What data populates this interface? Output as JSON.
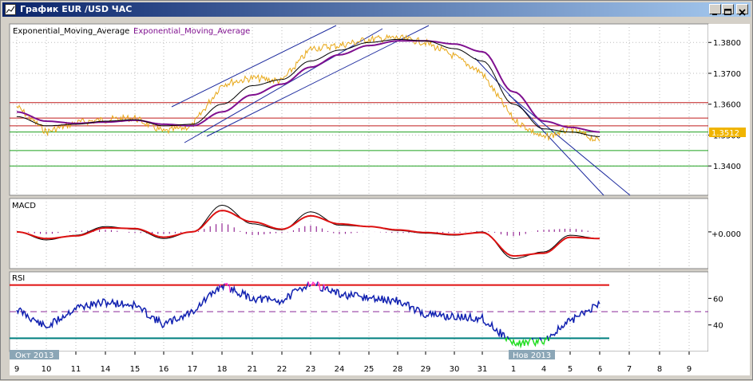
{
  "window": {
    "title": "График EUR /USD  ЧАС"
  },
  "price_panel": {
    "indicator_label_1": "Exponential_Moving_Average",
    "indicator_label_2": "Exponential_Moving_Average",
    "current_price": "1.3512",
    "y_ticks": [
      "1.3800",
      "1.3700",
      "1.3600",
      "1.3500",
      "1.3400"
    ]
  },
  "macd_panel": {
    "label": "MACD",
    "zero_label": "+0.000"
  },
  "rsi_panel": {
    "label": "RSI",
    "y_ticks": [
      "60",
      "40"
    ]
  },
  "x_axis": {
    "ticks": [
      "9",
      "10",
      "11",
      "14",
      "15",
      "16",
      "17",
      "18",
      "21",
      "22",
      "23",
      "24",
      "25",
      "28",
      "29",
      "30",
      "31",
      "1",
      "4",
      "5",
      "6",
      "7",
      "8",
      "9"
    ],
    "month_labels": [
      "Окт 2013",
      "Нов 2013"
    ]
  },
  "colors": {
    "price": "#e8a817",
    "ema_fast": "#000000",
    "ema_slow": "#7f0f8f",
    "channel": "#1c2a9e",
    "resistance": "#c01c1c",
    "support": "#1ea01e",
    "macd_signal": "#dd1111",
    "macd_hist": "#800080",
    "rsi": "#1020b0",
    "rsi_overbought": "#ff33cc",
    "rsi_oversold": "#22dd22",
    "price_label_bg": "#f0b400",
    "rsi_upper_line": "#e01010",
    "rsi_lower_line": "#008080",
    "rsi_mid_line": "#8b2a9a"
  },
  "chart_data": [
    {
      "type": "line",
      "panel": "price",
      "x": [
        "9",
        "10",
        "11",
        "14",
        "15",
        "16",
        "17",
        "18",
        "21",
        "22",
        "23",
        "24",
        "25",
        "28",
        "29",
        "30",
        "31",
        "1",
        "4",
        "5",
        "6"
      ],
      "series": [
        {
          "name": "",
          "values": [
            1.3593,
            1.351,
            1.354,
            1.355,
            1.3555,
            1.351,
            1.353,
            1.3665,
            1.3685,
            1.3675,
            1.378,
            1.379,
            1.381,
            1.3815,
            1.38,
            1.3755,
            1.37,
            1.355,
            1.349,
            1.352,
            1.348
          ]
        },
        {
          "name": "Exponential_Moving_Average",
          "values": [
            1.356,
            1.353,
            1.3535,
            1.3545,
            1.355,
            1.353,
            1.3535,
            1.36,
            1.366,
            1.368,
            1.374,
            1.3775,
            1.38,
            1.381,
            1.3805,
            1.378,
            1.374,
            1.36,
            1.352,
            1.351,
            1.3495
          ]
        },
        {
          "name": "Exponential_Moving_Average",
          "values": [
            1.3575,
            1.3545,
            1.3538,
            1.3542,
            1.3548,
            1.3535,
            1.353,
            1.3575,
            1.363,
            1.3665,
            1.372,
            1.376,
            1.379,
            1.3805,
            1.3805,
            1.3795,
            1.377,
            1.364,
            1.3545,
            1.3525,
            1.351
          ]
        }
      ],
      "horizontal_levels": {
        "resistance": [
          1.3605,
          1.3555,
          1.353
        ],
        "support": [
          1.351,
          1.345,
          1.34
        ]
      },
      "last_value": 1.3512,
      "ylim": [
        1.3305,
        1.386
      ]
    },
    {
      "type": "line",
      "panel": "macd",
      "x": [
        "9",
        "10",
        "11",
        "14",
        "15",
        "16",
        "17",
        "18",
        "21",
        "22",
        "23",
        "24",
        "25",
        "28",
        "29",
        "30",
        "31",
        "1",
        "4",
        "5",
        "6"
      ],
      "series": [
        {
          "name": "",
          "values": [
            0.0,
            -0.0012,
            -0.0005,
            0.0008,
            0.0004,
            -0.001,
            0.0,
            0.004,
            0.0012,
            0.0003,
            0.003,
            0.001,
            0.0008,
            0.0002,
            -0.0002,
            -0.0005,
            0.0,
            -0.004,
            -0.003,
            -0.0005,
            -0.001
          ]
        },
        {
          "name": "",
          "values": [
            0.0,
            -0.001,
            -0.0006,
            0.0006,
            0.0005,
            -0.0008,
            0.0,
            0.0032,
            0.0015,
            0.0004,
            0.0024,
            0.0012,
            0.0008,
            0.0003,
            -0.0001,
            -0.0004,
            -0.0001,
            -0.0036,
            -0.0032,
            -0.0008,
            -0.001
          ]
        }
      ],
      "ylim": [
        -0.0055,
        0.005
      ]
    },
    {
      "type": "line",
      "panel": "rsi",
      "x": [
        "9",
        "10",
        "11",
        "14",
        "15",
        "16",
        "17",
        "18",
        "21",
        "22",
        "23",
        "24",
        "25",
        "28",
        "29",
        "30",
        "31",
        "1",
        "4",
        "5",
        "6"
      ],
      "series": [
        {
          "name": "RSI",
          "values": [
            52,
            38,
            53,
            57,
            55,
            40,
            50,
            70,
            60,
            58,
            72,
            63,
            60,
            58,
            48,
            46,
            45,
            26,
            28,
            43,
            56
          ]
        }
      ],
      "levels": {
        "overbought": 70,
        "mid": 50,
        "oversold": 30
      },
      "ylim": [
        20,
        80
      ]
    }
  ]
}
